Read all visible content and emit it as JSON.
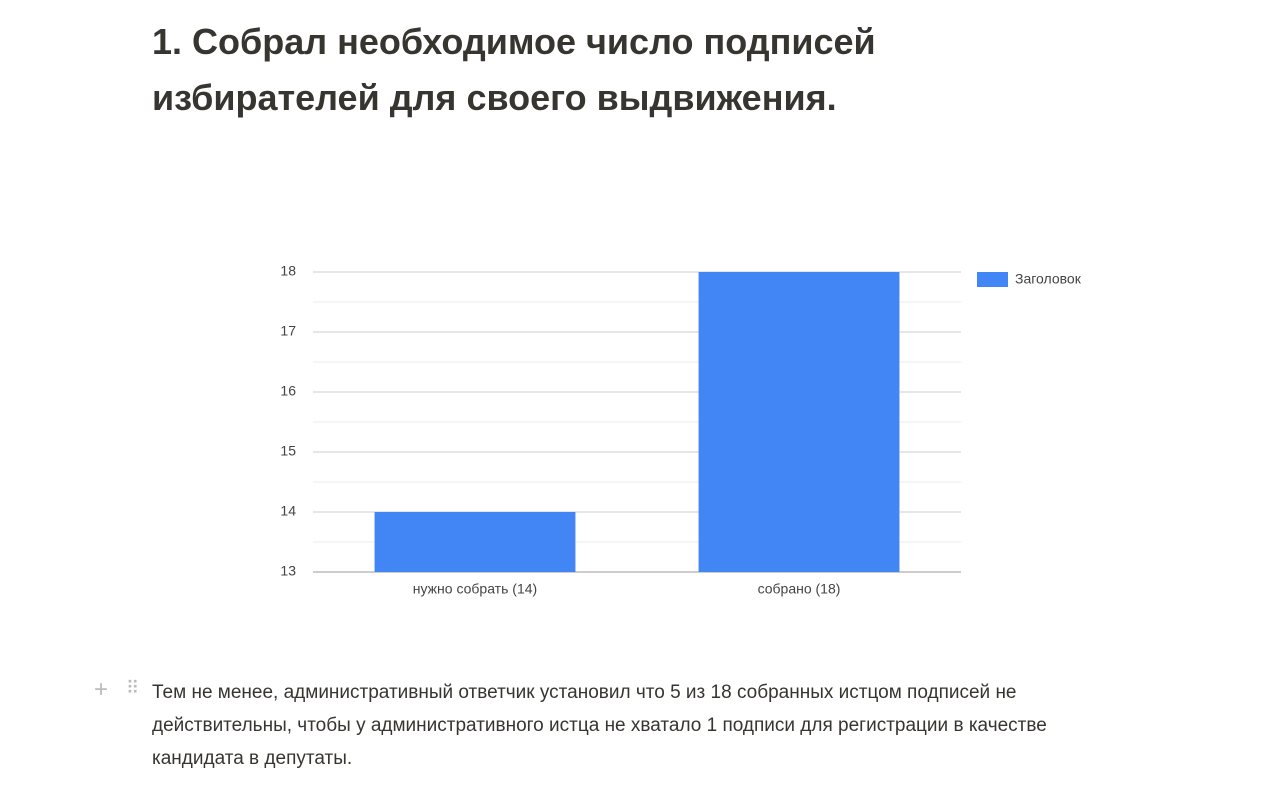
{
  "heading": "1. Собрал необходимое число подписей избирателей для своего выдвижения.",
  "chart_data": {
    "type": "bar",
    "categories": [
      "нужно собрать (14)",
      "собрано (18)"
    ],
    "series": [
      {
        "name": "Заголовок",
        "color": "#4285f4",
        "values": [
          14,
          18
        ]
      }
    ],
    "ylim": [
      13,
      18
    ],
    "yticks": [
      13,
      14,
      15,
      16,
      17,
      18
    ],
    "grid": true,
    "legend": "right"
  },
  "paragraph": "Тем не менее, административный ответчик установил что 5 из 18 собранных истцом подписей не действительны, чтобы у административного истца не хватало 1 подписи для регистрации в качестве кандидата в депутаты."
}
